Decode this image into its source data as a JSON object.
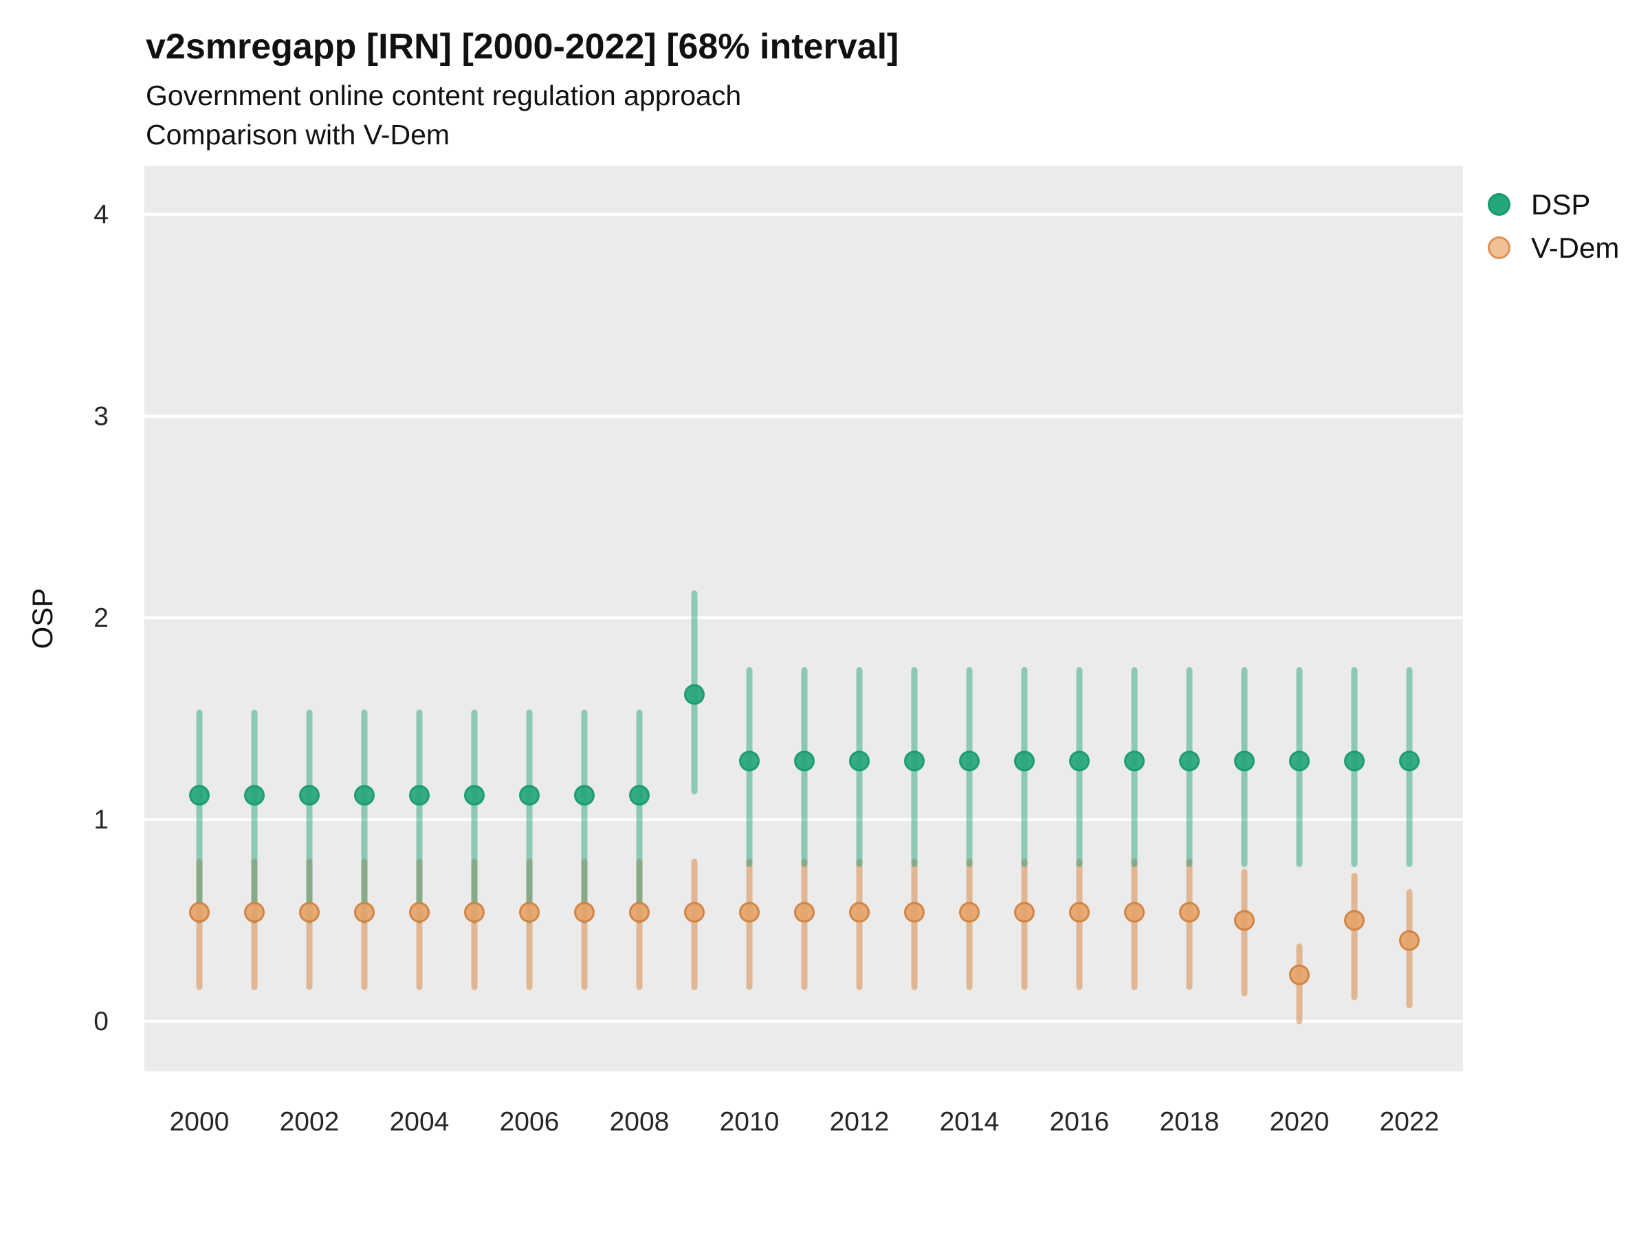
{
  "title": "v2smregapp [IRN] [2000-2022] [68% interval]",
  "subtitle1": "Government online content regulation approach",
  "subtitle2": "Comparison with V-Dem",
  "ylabel": "OSP",
  "legend": {
    "position": "right",
    "items": [
      {
        "label": "DSP",
        "fill": "#26A67B",
        "stroke": "#189B6C"
      },
      {
        "label": "V-Dem",
        "fill": "#F0C196",
        "stroke": "#DD9255"
      }
    ]
  },
  "colors": {
    "panel_background": "#EBEBEB",
    "gridline": "#FFFFFF",
    "tick_text": "#262626",
    "dsp_green": "#1B9E77",
    "vdem_orange": "#D9823E"
  },
  "chart_data": {
    "type": "pointrange",
    "title": "v2smregapp [IRN] [2000-2022] [68% interval]",
    "subtitle": [
      "Government online content regulation approach",
      "Comparison with V-Dem"
    ],
    "xlabel": "",
    "ylabel": "OSP",
    "interval": "68%",
    "grid": "horizontal-major-white",
    "legend_position": "right",
    "ylim": [
      -0.25,
      4.24
    ],
    "y_ticks": [
      0,
      1,
      2,
      3,
      4
    ],
    "x_tick_labels": [
      2000,
      2002,
      2004,
      2006,
      2008,
      2010,
      2012,
      2014,
      2016,
      2018,
      2020,
      2022
    ],
    "x": [
      2000,
      2001,
      2002,
      2003,
      2004,
      2005,
      2006,
      2007,
      2008,
      2009,
      2010,
      2011,
      2012,
      2013,
      2014,
      2015,
      2016,
      2017,
      2018,
      2019,
      2020,
      2021,
      2022
    ],
    "series": [
      {
        "name": "DSP",
        "line_color": "#1B9E77",
        "line_opacity": 0.45,
        "point_fill": "#26A67B",
        "point_stroke": "#189B6C",
        "points": [
          1.12,
          1.12,
          1.12,
          1.12,
          1.12,
          1.12,
          1.12,
          1.12,
          1.12,
          1.62,
          1.29,
          1.29,
          1.29,
          1.29,
          1.29,
          1.29,
          1.29,
          1.29,
          1.29,
          1.29,
          1.29,
          1.29,
          1.29
        ],
        "lower": [
          0.5,
          0.5,
          0.5,
          0.5,
          0.5,
          0.5,
          0.5,
          0.5,
          0.5,
          1.14,
          0.78,
          0.78,
          0.78,
          0.78,
          0.78,
          0.78,
          0.78,
          0.78,
          0.78,
          0.78,
          0.78,
          0.78,
          0.78
        ],
        "upper": [
          1.53,
          1.53,
          1.53,
          1.53,
          1.53,
          1.53,
          1.53,
          1.53,
          1.53,
          2.12,
          1.74,
          1.74,
          1.74,
          1.74,
          1.74,
          1.74,
          1.74,
          1.74,
          1.74,
          1.74,
          1.74,
          1.74,
          1.74
        ]
      },
      {
        "name": "V-Dem",
        "line_color": "#D9823E",
        "line_opacity": 0.5,
        "point_fill": "#E6A469",
        "point_stroke": "#D0813F",
        "points": [
          0.54,
          0.54,
          0.54,
          0.54,
          0.54,
          0.54,
          0.54,
          0.54,
          0.54,
          0.54,
          0.54,
          0.54,
          0.54,
          0.54,
          0.54,
          0.54,
          0.54,
          0.54,
          0.54,
          0.5,
          0.23,
          0.5,
          0.4
        ],
        "lower": [
          0.17,
          0.17,
          0.17,
          0.17,
          0.17,
          0.17,
          0.17,
          0.17,
          0.17,
          0.17,
          0.17,
          0.17,
          0.17,
          0.17,
          0.17,
          0.17,
          0.17,
          0.17,
          0.17,
          0.14,
          0.0,
          0.12,
          0.08
        ],
        "upper": [
          0.79,
          0.79,
          0.79,
          0.79,
          0.79,
          0.79,
          0.79,
          0.79,
          0.79,
          0.79,
          0.79,
          0.79,
          0.79,
          0.79,
          0.79,
          0.79,
          0.79,
          0.79,
          0.79,
          0.74,
          0.37,
          0.72,
          0.64
        ]
      }
    ]
  }
}
